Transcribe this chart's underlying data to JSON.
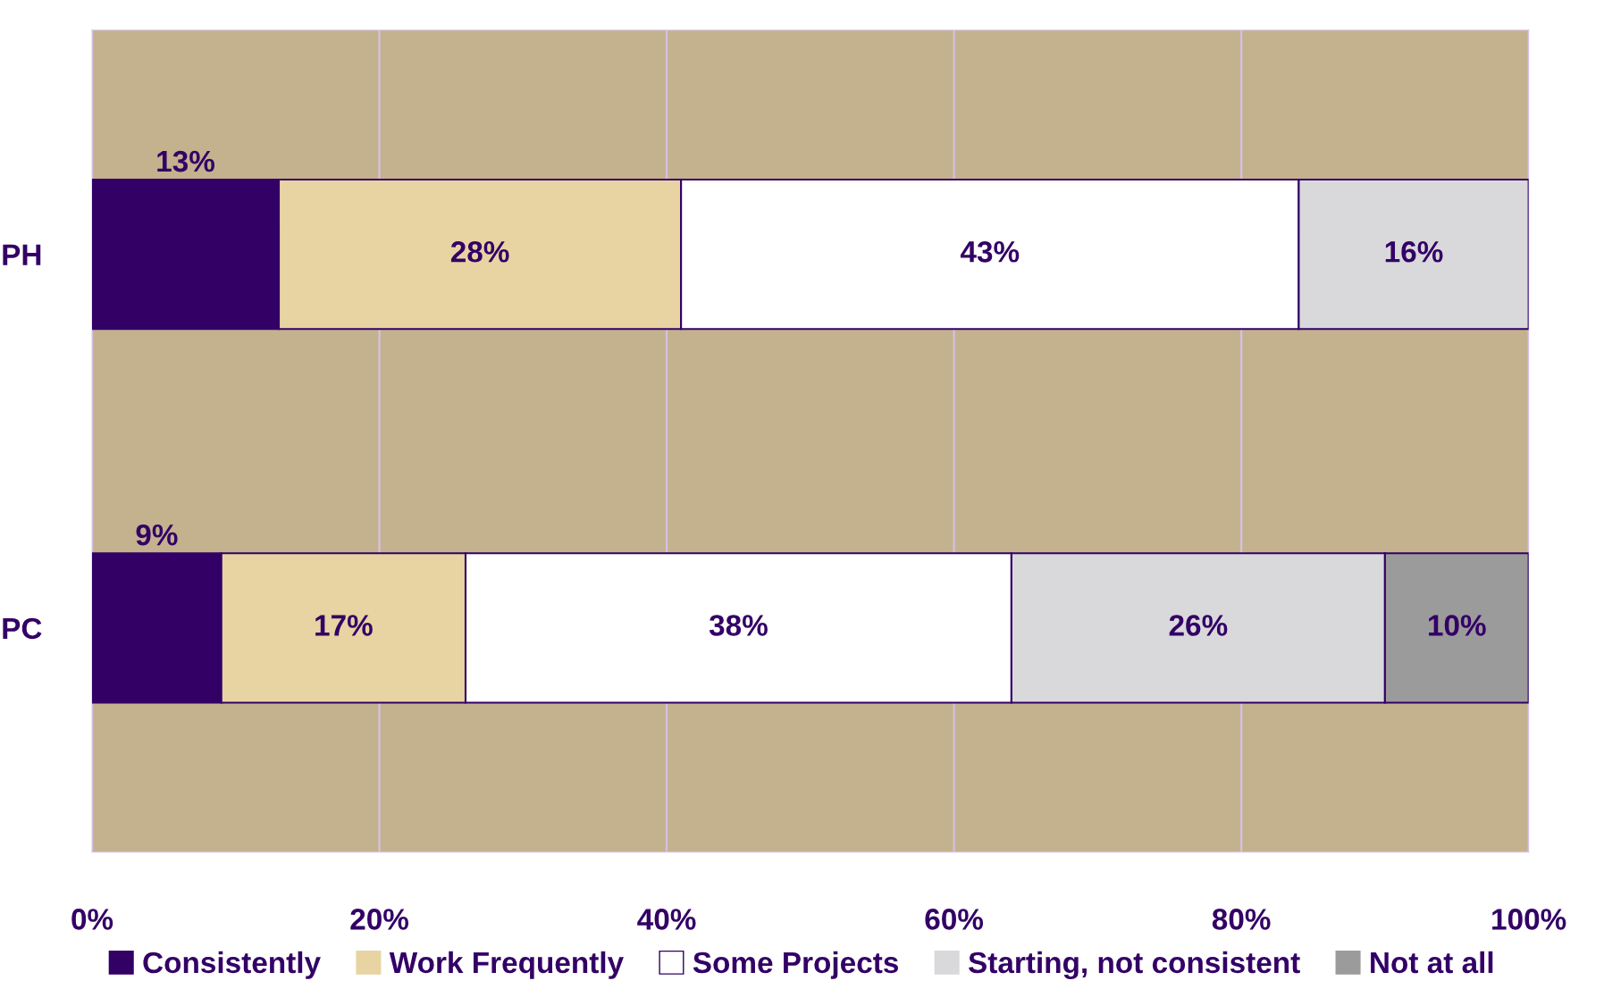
{
  "chart_data": {
    "type": "bar",
    "orientation": "horizontal",
    "stacked": true,
    "categories": [
      "PH",
      "PC"
    ],
    "series": [
      {
        "name": "Consistently",
        "color": "#330066",
        "values": [
          13,
          9
        ],
        "value_labels": [
          "13%",
          "9%"
        ]
      },
      {
        "name": "Work Frequently",
        "color": "#e8d4a2",
        "values": [
          28,
          17
        ],
        "value_labels": [
          "28%",
          "17%"
        ]
      },
      {
        "name": "Some Projects",
        "color": "#ffffff",
        "values": [
          43,
          38
        ],
        "value_labels": [
          "43%",
          "38%"
        ]
      },
      {
        "name": "Starting, not consistent",
        "color": "#d9d9dc",
        "values": [
          16,
          26
        ],
        "value_labels": [
          "16%",
          "26%"
        ]
      },
      {
        "name": "Not at all",
        "color": "#9b9b9b",
        "values": [
          null,
          10
        ],
        "value_labels": [
          null,
          "10%"
        ]
      }
    ],
    "xlim": [
      0,
      100
    ],
    "xticks": [
      {
        "value": 0,
        "label": "0%"
      },
      {
        "value": 20,
        "label": "20%"
      },
      {
        "value": 40,
        "label": "40%"
      },
      {
        "value": 60,
        "label": "60%"
      },
      {
        "value": 80,
        "label": "80%"
      },
      {
        "value": 100,
        "label": "100%"
      }
    ],
    "grid": "x",
    "legend": "bottom"
  }
}
